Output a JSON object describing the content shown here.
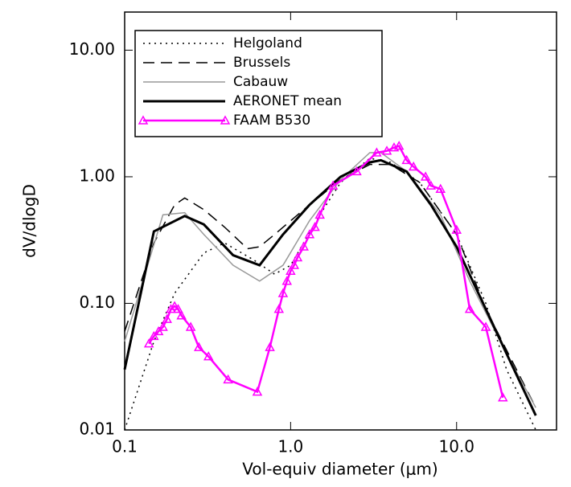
{
  "chart_data": {
    "type": "line",
    "log_x": true,
    "log_y": true,
    "xlabel": "Vol-equiv diameter (μm)",
    "ylabel": "dV/dlogD",
    "xlim": [
      0.1,
      40
    ],
    "ylim": [
      0.01,
      20
    ],
    "xticks": [
      0.1,
      {
        "value": 1,
        "label": "1.0"
      },
      {
        "value": 10,
        "label": "10.0"
      }
    ],
    "yticks": [
      0.01,
      {
        "value": 0.1,
        "label": "0.10"
      },
      {
        "value": 1,
        "label": "1.00"
      },
      {
        "value": 10,
        "label": "10.00"
      }
    ],
    "legend": "upper left",
    "series": [
      {
        "name": "Helgoland",
        "color": "#000000",
        "style": "dotted",
        "width": 1.5,
        "x": [
          0.1,
          0.15,
          0.2,
          0.3,
          0.4,
          0.6,
          0.8,
          1.0,
          1.5,
          2,
          3,
          4,
          6,
          10,
          15,
          20,
          30
        ],
        "values": [
          0.01,
          0.05,
          0.12,
          0.25,
          0.3,
          0.22,
          0.17,
          0.2,
          0.5,
          0.9,
          1.4,
          1.3,
          0.9,
          0.35,
          0.1,
          0.03,
          0.01
        ]
      },
      {
        "name": "Brussels",
        "color": "#000000",
        "style": "dashed",
        "width": 1.5,
        "x": [
          0.1,
          0.15,
          0.2,
          0.23,
          0.3,
          0.4,
          0.55,
          0.65,
          0.8,
          1.2,
          2,
          3,
          4,
          6,
          10,
          15,
          30
        ],
        "values": [
          0.06,
          0.3,
          0.6,
          0.68,
          0.55,
          0.4,
          0.27,
          0.28,
          0.35,
          0.55,
          0.95,
          1.25,
          1.25,
          0.9,
          0.35,
          0.09,
          0.015
        ]
      },
      {
        "name": "Cabauw",
        "color": "#999999",
        "style": "solid",
        "width": 1.5,
        "x": [
          0.1,
          0.17,
          0.23,
          0.3,
          0.45,
          0.65,
          0.9,
          1.3,
          2,
          3,
          3.5,
          5,
          8,
          12,
          20,
          30
        ],
        "values": [
          0.05,
          0.5,
          0.52,
          0.35,
          0.2,
          0.15,
          0.2,
          0.45,
          0.95,
          1.55,
          1.55,
          1.1,
          0.5,
          0.15,
          0.04,
          0.015
        ]
      },
      {
        "name": "AERONET mean",
        "color": "#000000",
        "style": "solid",
        "width": 3,
        "x": [
          0.1,
          0.15,
          0.23,
          0.3,
          0.45,
          0.65,
          0.9,
          1.3,
          2,
          3,
          3.5,
          5,
          7,
          10,
          15,
          20,
          30
        ],
        "values": [
          0.03,
          0.37,
          0.49,
          0.42,
          0.24,
          0.2,
          0.35,
          0.6,
          1.0,
          1.3,
          1.35,
          1.1,
          0.6,
          0.28,
          0.09,
          0.04,
          0.013
        ]
      },
      {
        "name": "FAAM B530",
        "color": "#ff00ff",
        "style": "solid",
        "width": 2.5,
        "marker": "triangle",
        "x": [
          0.14,
          0.15,
          0.16,
          0.17,
          0.18,
          0.19,
          0.2,
          0.21,
          0.22,
          0.25,
          0.28,
          0.32,
          0.42,
          0.63,
          0.75,
          0.85,
          0.9,
          0.95,
          1.0,
          1.05,
          1.1,
          1.2,
          1.3,
          1.4,
          1.5,
          1.8,
          2.5,
          3.3,
          3.8,
          4.2,
          4.5,
          5,
          5.5,
          6.5,
          7,
          8,
          10,
          12,
          15,
          19
        ],
        "values": [
          0.048,
          0.055,
          0.06,
          0.065,
          0.075,
          0.09,
          0.095,
          0.09,
          0.08,
          0.065,
          0.045,
          0.038,
          0.025,
          0.02,
          0.045,
          0.09,
          0.12,
          0.15,
          0.18,
          0.2,
          0.23,
          0.28,
          0.35,
          0.4,
          0.5,
          0.85,
          1.1,
          1.55,
          1.6,
          1.7,
          1.75,
          1.35,
          1.2,
          1.0,
          0.85,
          0.8,
          0.38,
          0.09,
          0.065,
          0.018
        ]
      }
    ]
  }
}
